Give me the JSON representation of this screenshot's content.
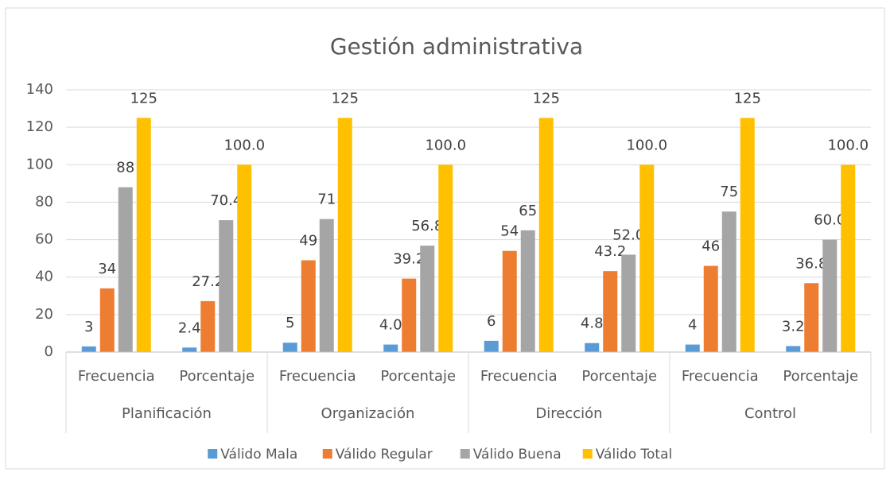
{
  "chart_data": {
    "type": "bar",
    "title": "Gestión administrativa",
    "categories": [
      "Frecuencia",
      "Porcentaje",
      "Frecuencia",
      "Porcentaje",
      "Frecuencia",
      "Porcentaje",
      "Frecuencia",
      "Porcentaje"
    ],
    "group_labels": [
      "Planificación",
      "Organización",
      "Dirección",
      "Control"
    ],
    "series": [
      {
        "name": "Válido Mala",
        "color": "#5b9bd5",
        "values": [
          3,
          2.4,
          5,
          4.0,
          6,
          4.8,
          4,
          3.2
        ],
        "value_labels": [
          "3",
          "2.4",
          "5",
          "4.0",
          "6",
          "4.8",
          "4",
          "3.2"
        ]
      },
      {
        "name": "Válido Regular",
        "color": "#ed7d31",
        "values": [
          34,
          27.2,
          49,
          39.2,
          54,
          43.2,
          46,
          36.8
        ],
        "value_labels": [
          "34",
          "27.2",
          "49",
          "39.2",
          "54",
          "43.2",
          "46",
          "36.8"
        ]
      },
      {
        "name": "Válido Buena",
        "color": "#a5a5a5",
        "values": [
          88,
          70.4,
          71,
          56.8,
          65,
          52.0,
          75,
          60.0
        ],
        "value_labels": [
          "88",
          "70.4",
          "71",
          "56.8",
          "65",
          "52.0",
          "75",
          "60.0"
        ]
      },
      {
        "name": "Válido Total",
        "color": "#ffc000",
        "values": [
          125,
          100,
          125,
          100,
          125,
          100,
          125,
          100
        ],
        "value_labels": [
          "125",
          "100.0",
          "125",
          "100.0",
          "125",
          "100.0",
          "125",
          "100.0"
        ]
      }
    ],
    "ylim": [
      0,
      140
    ],
    "yticks": [
      0,
      20,
      40,
      60,
      80,
      100,
      120,
      140
    ],
    "grid": true,
    "legend": "bottom"
  }
}
